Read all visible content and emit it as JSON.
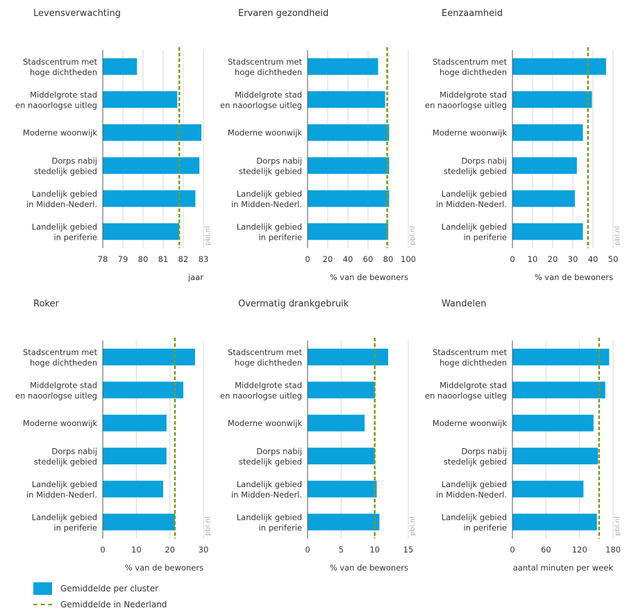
{
  "colors": {
    "bar": "#0aa1dc",
    "average_line": "#7a9a24",
    "grid": "#d9d9d9",
    "axis": "#555555",
    "text": "#333333"
  },
  "watermark": "pbl.nl",
  "legend": {
    "cluster": "Gemiddelde per cluster",
    "netherlands": "Gemiddelde in Nederland"
  },
  "chart_data": [
    {
      "type": "bar",
      "orientation": "horizontal",
      "title": "Levensverwachting",
      "xlabel": "jaar",
      "categories": [
        "Stadscentrum met|hoge dichtheden",
        "Middelgrote stad|en naoorlogse uitleg",
        "Moderne woonwijk",
        "Dorps nabij|stedelijk gebied",
        "Landelijk gebied|in Midden-Nederl.",
        "Landelijk gebied|in periferie"
      ],
      "values": [
        79.7,
        81.7,
        82.9,
        82.8,
        82.6,
        81.8
      ],
      "reference": 81.8,
      "xlim": [
        78,
        83
      ],
      "ticks": [
        78,
        79,
        80,
        81,
        82,
        83
      ],
      "grid": true
    },
    {
      "type": "bar",
      "orientation": "horizontal",
      "title": "Ervaren gezondheid",
      "xlabel": "% van de bewoners",
      "categories": [
        "Stadscentrum met|hoge dichtheden",
        "Middelgrote stad|en naoorlogse uitleg",
        "Moderne woonwijk",
        "Dorps nabij|stedelijk gebied",
        "Landelijk gebied|in Midden-Nederl.",
        "Landelijk gebied|in periferie"
      ],
      "values": [
        70,
        77,
        81,
        81,
        81,
        80
      ],
      "reference": 79,
      "xlim": [
        0,
        100
      ],
      "ticks": [
        0,
        20,
        40,
        60,
        80,
        100
      ],
      "grid": true
    },
    {
      "type": "bar",
      "orientation": "horizontal",
      "title": "Eenzaamheid",
      "xlabel": "% van de bewoners",
      "categories": [
        "Stadscentrum met|hoge dichtheden",
        "Middelgrote stad|en naoorlogse uitleg",
        "Moderne woonwijk",
        "Dorps nabij|stedelijk gebied",
        "Landelijk gebied|in Midden-Nederl.",
        "Landelijk gebied|in periferie"
      ],
      "values": [
        46.5,
        39.5,
        35,
        32,
        31,
        35
      ],
      "reference": 37.5,
      "xlim": [
        0,
        50
      ],
      "ticks": [
        0,
        10,
        20,
        30,
        40,
        50
      ],
      "grid": true
    },
    {
      "type": "bar",
      "orientation": "horizontal",
      "title": "Roker",
      "xlabel": "% van de bewoners",
      "categories": [
        "Stadscentrum met|hoge dichtheden",
        "Middelgrote stad|en naoorlogse uitleg",
        "Moderne woonwijk",
        "Dorps nabij|stedelijk gebied",
        "Landelijk gebied|in Midden-Nederl.",
        "Landelijk gebied|in periferie"
      ],
      "values": [
        27.5,
        24,
        19,
        19,
        18,
        21.5
      ],
      "reference": 21.5,
      "xlim": [
        0,
        30
      ],
      "ticks": [
        0,
        10,
        20,
        30
      ],
      "grid": true
    },
    {
      "type": "bar",
      "orientation": "horizontal",
      "title": "Overmatig drankgebruik",
      "xlabel": "% van de bewoners",
      "categories": [
        "Stadscentrum met|hoge dichtheden",
        "Middelgrote stad|en naoorlogse uitleg",
        "Moderne woonwijk",
        "Dorps nabij|stedelijk gebied",
        "Landelijk gebied|in Midden-Nederl.",
        "Landelijk gebied|in periferie"
      ],
      "values": [
        12,
        10,
        8.5,
        10,
        10.3,
        10.7
      ],
      "reference": 10,
      "xlim": [
        0,
        15
      ],
      "ticks": [
        0,
        5,
        10,
        15
      ],
      "grid": true
    },
    {
      "type": "bar",
      "orientation": "horizontal",
      "title": "Wandelen",
      "xlabel": "aantal minuten per week",
      "categories": [
        "Stadscentrum met|hoge dichtheden",
        "Middelgrote stad|en naoorlogse uitleg",
        "Moderne woonwijk",
        "Dorps nabij|stedelijk gebied",
        "Landelijk gebied|in Midden-Nederl.",
        "Landelijk gebied|in periferie"
      ],
      "values": [
        173,
        166,
        145,
        153,
        127,
        151
      ],
      "reference": 155,
      "xlim": [
        0,
        180
      ],
      "ticks": [
        0,
        60,
        120,
        180
      ],
      "grid": true
    }
  ]
}
